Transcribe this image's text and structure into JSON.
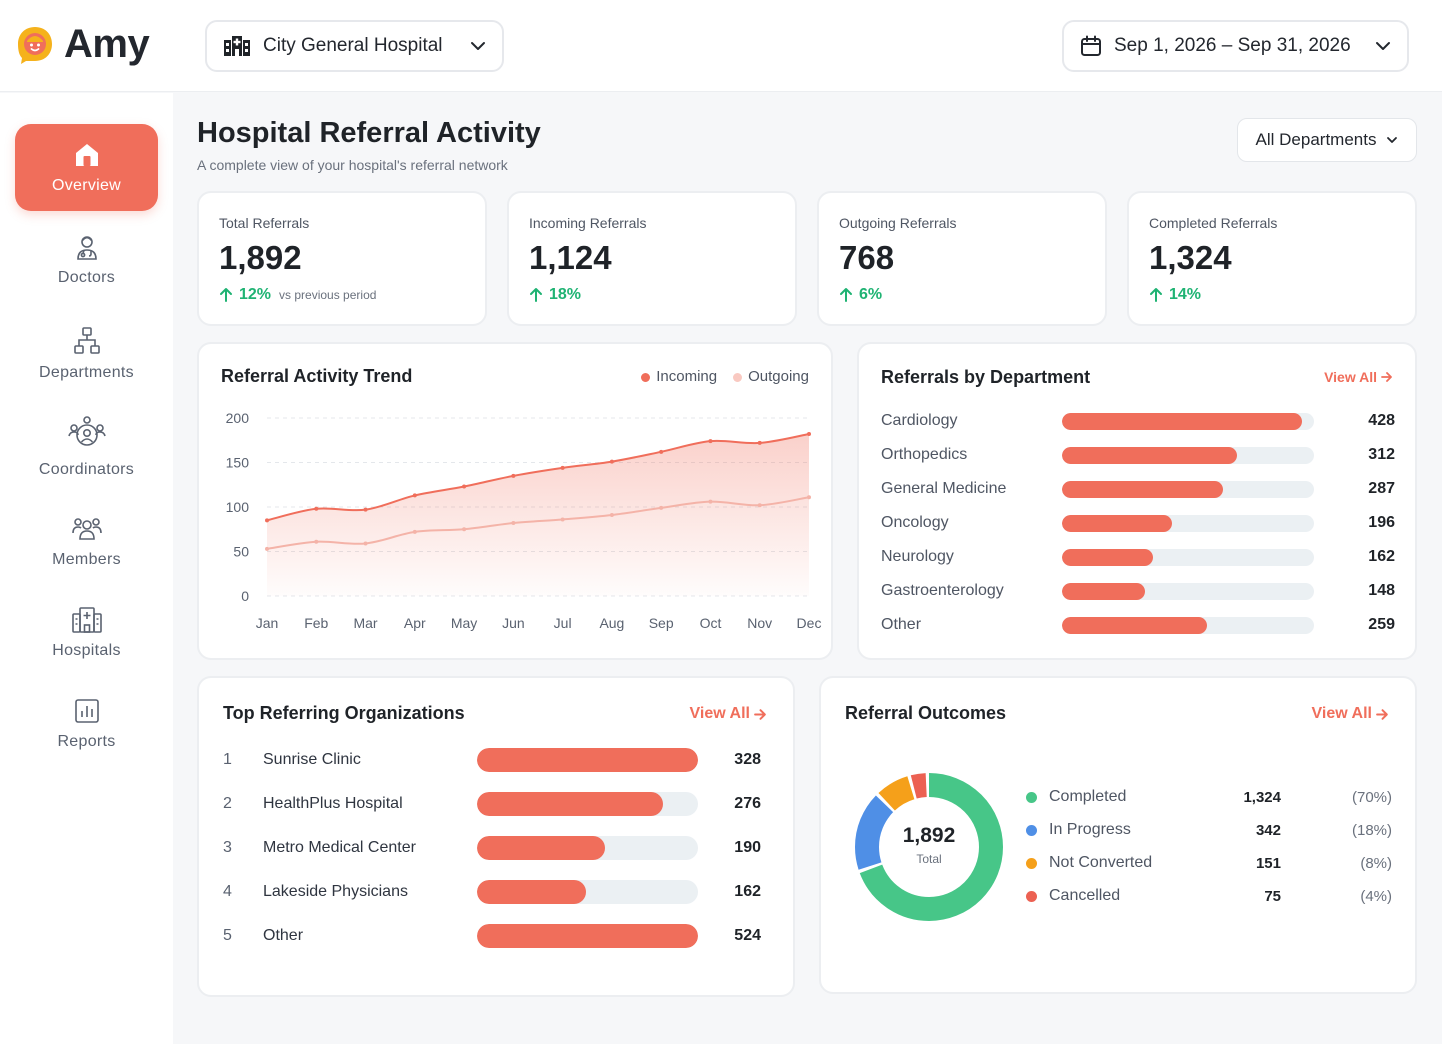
{
  "app": {
    "logo_text": "Amy",
    "hospital": "City General Hospital",
    "date_range": "Sep 1, 2026 – Sep 31, 2026"
  },
  "sidebar": {
    "items": [
      {
        "label": "Overview",
        "icon": "home-icon",
        "active": true
      },
      {
        "label": "Doctors",
        "icon": "doctor-icon"
      },
      {
        "label": "Departments",
        "icon": "departments-icon"
      },
      {
        "label": "Coordinators",
        "icon": "coordinators-icon"
      },
      {
        "label": "Members",
        "icon": "members-icon"
      },
      {
        "label": "Hospitals",
        "icon": "hospital-icon"
      },
      {
        "label": "Reports",
        "icon": "reports-icon"
      }
    ]
  },
  "header": {
    "title": "Hospital Referral Activity",
    "subtitle": "A complete view of your hospital's referral network",
    "department_filter": "All Departments"
  },
  "stats": [
    {
      "label": "Total Referrals",
      "value": "1,892",
      "delta": "12%",
      "vs": "vs previous period"
    },
    {
      "label": "Incoming Referrals",
      "value": "1,124",
      "delta": "18%"
    },
    {
      "label": "Outgoing Referrals",
      "value": "768",
      "delta": "6%"
    },
    {
      "label": "Completed Referrals",
      "value": "1,324",
      "delta": "14%"
    }
  ],
  "trend": {
    "title": "Referral Activity Trend",
    "legend": {
      "incoming": "Incoming",
      "outgoing": "Outgoing"
    }
  },
  "chart_data": {
    "type": "area",
    "x": [
      "Jan",
      "Feb",
      "Mar",
      "Apr",
      "May",
      "Jun",
      "Jul",
      "Aug",
      "Sep",
      "Oct",
      "Nov",
      "Dec"
    ],
    "series": [
      {
        "name": "Incoming",
        "values": [
          85,
          98,
          97,
          113,
          123,
          135,
          144,
          151,
          162,
          174,
          172,
          182
        ]
      },
      {
        "name": "Outgoing",
        "values": [
          53,
          61,
          59,
          72,
          75,
          82,
          86,
          91,
          99,
          106,
          102,
          111
        ]
      }
    ],
    "ylim": [
      0,
      200
    ],
    "yticks": [
      "0",
      "50",
      "100",
      "150",
      "200"
    ],
    "colors": {
      "incoming": "#f06e5b",
      "outgoing": "#f4b3a8"
    }
  },
  "departments": {
    "title": "Referrals by Department",
    "view_all": "View All",
    "max": 450,
    "items": [
      {
        "name": "Cardiology",
        "value": 428,
        "value_label": "428"
      },
      {
        "name": "Orthopedics",
        "value": 312,
        "value_label": "312"
      },
      {
        "name": "General Medicine",
        "value": 287,
        "value_label": "287"
      },
      {
        "name": "Oncology",
        "value": 196,
        "value_label": "196"
      },
      {
        "name": "Neurology",
        "value": 162,
        "value_label": "162"
      },
      {
        "name": "Gastroenterology",
        "value": 148,
        "value_label": "148"
      },
      {
        "name": "Other",
        "value": 259,
        "value_label": "259"
      }
    ]
  },
  "organizations": {
    "title": "Top Referring Organizations",
    "view_all": "View All",
    "max": 328,
    "items": [
      {
        "rank": "1",
        "name": "Sunrise Clinic",
        "value": 328,
        "value_label": "328"
      },
      {
        "rank": "2",
        "name": "HealthPlus Hospital",
        "value": 276,
        "value_label": "276"
      },
      {
        "rank": "3",
        "name": "Metro Medical Center",
        "value": 190,
        "value_label": "190"
      },
      {
        "rank": "4",
        "name": "Lakeside Physicians",
        "value": 162,
        "value_label": "162"
      },
      {
        "rank": "5",
        "name": "Other",
        "value": 524,
        "value_label": "524"
      }
    ]
  },
  "outcomes": {
    "title": "Referral Outcomes",
    "view_all": "View All",
    "total": "1,892",
    "total_label": "Total",
    "items": [
      {
        "label": "Completed",
        "value": "1,324",
        "pct": "(70%)",
        "share": 70,
        "color": "#47c688"
      },
      {
        "label": "In Progress",
        "value": "342",
        "pct": "(18%)",
        "share": 18,
        "color": "#4f8fe6"
      },
      {
        "label": "Not Converted",
        "value": "151",
        "pct": "(8%)",
        "share": 8,
        "color": "#f5a01a"
      },
      {
        "label": "Cancelled",
        "value": "75",
        "pct": "(4%)",
        "share": 4,
        "color": "#ec6152"
      }
    ]
  }
}
